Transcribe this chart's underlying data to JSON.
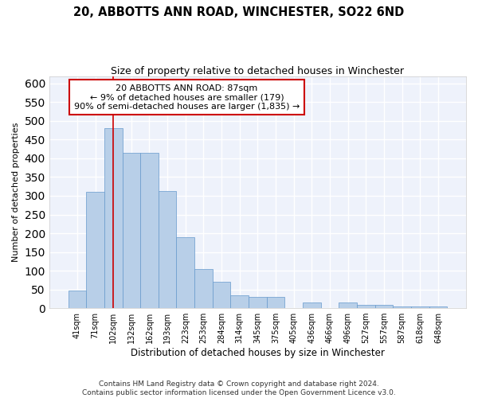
{
  "title": "20, ABBOTTS ANN ROAD, WINCHESTER, SO22 6ND",
  "subtitle": "Size of property relative to detached houses in Winchester",
  "xlabel": "Distribution of detached houses by size in Winchester",
  "ylabel": "Number of detached properties",
  "categories": [
    "41sqm",
    "71sqm",
    "102sqm",
    "132sqm",
    "162sqm",
    "193sqm",
    "223sqm",
    "253sqm",
    "284sqm",
    "314sqm",
    "345sqm",
    "375sqm",
    "405sqm",
    "436sqm",
    "466sqm",
    "496sqm",
    "527sqm",
    "557sqm",
    "587sqm",
    "618sqm",
    "648sqm"
  ],
  "values": [
    46,
    311,
    480,
    415,
    415,
    313,
    190,
    105,
    70,
    35,
    30,
    30,
    0,
    14,
    0,
    14,
    9,
    9,
    5,
    5,
    5
  ],
  "bar_color": "#b8cfe8",
  "bar_edge_color": "#6699cc",
  "bg_color": "#eef2fb",
  "grid_color": "#ffffff",
  "annotation_line1": "20 ABBOTTS ANN ROAD: 87sqm",
  "annotation_line2": "← 9% of detached houses are smaller (179)",
  "annotation_line3": "90% of semi-detached houses are larger (1,835) →",
  "vline_color": "#cc0000",
  "vline_xindex": 1.97,
  "ylim": [
    0,
    620
  ],
  "yticks": [
    0,
    50,
    100,
    150,
    200,
    250,
    300,
    350,
    400,
    450,
    500,
    550,
    600
  ],
  "footer_line1": "Contains HM Land Registry data © Crown copyright and database right 2024.",
  "footer_line2": "Contains public sector information licensed under the Open Government Licence v3.0.",
  "title_fontsize": 10.5,
  "subtitle_fontsize": 9,
  "xlabel_fontsize": 8.5,
  "ylabel_fontsize": 8,
  "tick_fontsize": 7,
  "ann_fontsize": 8,
  "footer_fontsize": 6.5
}
